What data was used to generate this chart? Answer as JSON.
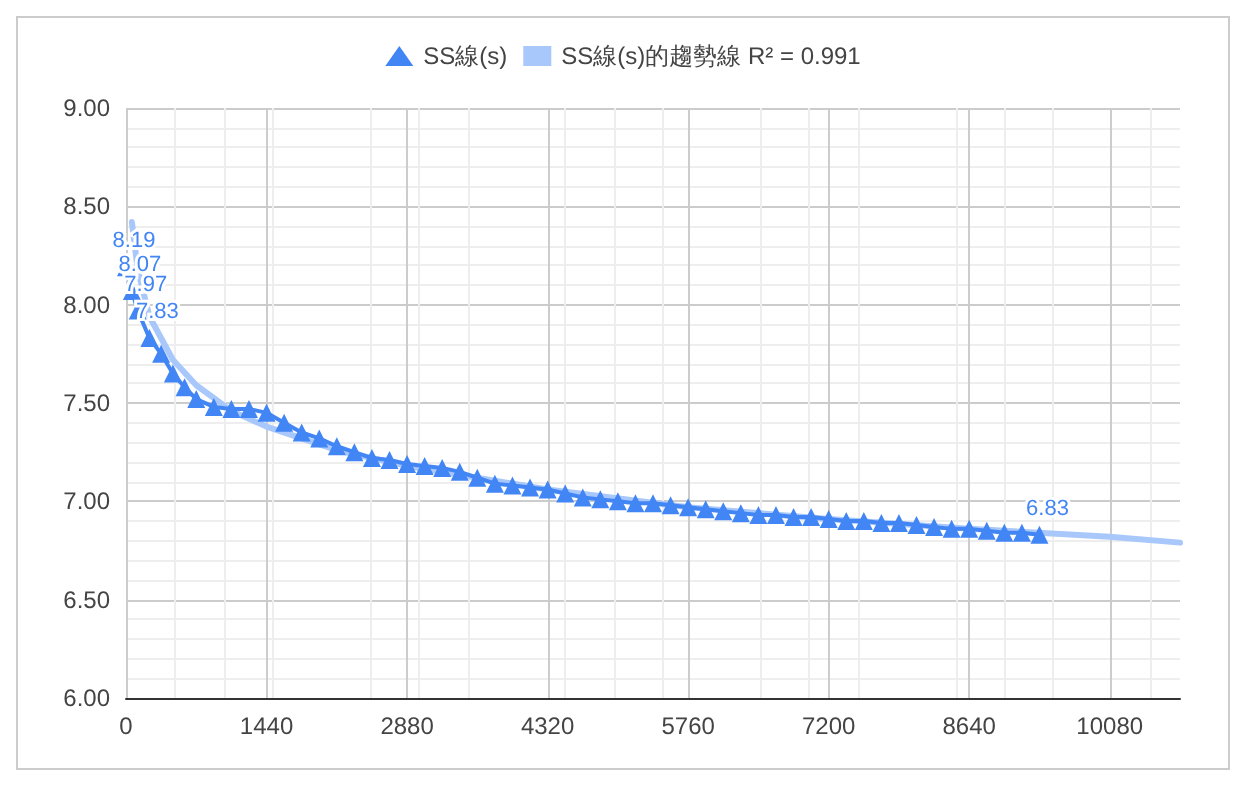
{
  "chart_data": {
    "type": "line",
    "xlim": [
      0,
      10800
    ],
    "xticks": [
      0,
      1440,
      2880,
      4320,
      5760,
      7200,
      8640,
      10080
    ],
    "ylim": [
      6,
      9
    ],
    "yticks": [
      {
        "value": 6,
        "label": "6.00"
      },
      {
        "value": 6.5,
        "label": "6.50"
      },
      {
        "value": 7,
        "label": "7.00"
      },
      {
        "value": 7.5,
        "label": "7.50"
      },
      {
        "value": 8,
        "label": "8.00"
      },
      {
        "value": 8.5,
        "label": "8.50"
      },
      {
        "value": 9,
        "label": "9.00"
      }
    ],
    "grid": true,
    "legend": "top",
    "series": [
      {
        "name": "SS線(s)",
        "color": "#4285f4",
        "marker": "triangle",
        "line_style": "solid",
        "x": [
          0,
          60,
          120,
          240,
          360,
          480,
          600,
          720,
          900,
          1080,
          1260,
          1440,
          1620,
          1800,
          1980,
          2160,
          2340,
          2520,
          2700,
          2880,
          3060,
          3240,
          3420,
          3600,
          3780,
          3960,
          4140,
          4320,
          4500,
          4680,
          4860,
          5040,
          5220,
          5400,
          5580,
          5760,
          5940,
          6120,
          6300,
          6480,
          6660,
          6840,
          7020,
          7200,
          7380,
          7560,
          7740,
          7920,
          8100,
          8280,
          8460,
          8640,
          8820,
          9000,
          9180,
          9360
        ],
        "values": [
          8.19,
          8.07,
          7.97,
          7.83,
          7.75,
          7.65,
          7.58,
          7.52,
          7.48,
          7.47,
          7.47,
          7.45,
          7.4,
          7.35,
          7.32,
          7.28,
          7.25,
          7.22,
          7.21,
          7.19,
          7.18,
          7.17,
          7.15,
          7.12,
          7.09,
          7.08,
          7.07,
          7.06,
          7.04,
          7.02,
          7.01,
          7.0,
          6.99,
          6.99,
          6.98,
          6.97,
          6.96,
          6.95,
          6.94,
          6.93,
          6.93,
          6.92,
          6.92,
          6.91,
          6.9,
          6.9,
          6.89,
          6.89,
          6.88,
          6.87,
          6.86,
          6.86,
          6.85,
          6.84,
          6.84,
          6.83
        ],
        "value_labels": [
          "8.19",
          "8.07",
          "7.97",
          "7.83",
          null,
          null,
          null,
          null,
          null,
          null,
          null,
          null,
          null,
          null,
          null,
          null,
          null,
          null,
          null,
          null,
          null,
          null,
          null,
          null,
          null,
          null,
          null,
          null,
          null,
          null,
          null,
          null,
          null,
          null,
          null,
          null,
          null,
          null,
          null,
          null,
          null,
          null,
          null,
          null,
          null,
          null,
          null,
          null,
          null,
          null,
          null,
          null,
          null,
          null,
          null,
          "6.83"
        ]
      },
      {
        "name": "SS線(s)的趨勢線 R² = 0.991",
        "color": "#a8c7fa",
        "marker": "none",
        "line_style": "solid",
        "x": [
          60,
          120,
          240,
          480,
          720,
          1080,
          1440,
          2160,
          2880,
          4320,
          5760,
          7200,
          8640,
          10080,
          10800
        ],
        "values": [
          8.42,
          8.18,
          7.94,
          7.72,
          7.59,
          7.46,
          7.38,
          7.26,
          7.18,
          7.06,
          6.97,
          6.91,
          6.86,
          6.82,
          6.79
        ]
      }
    ]
  }
}
